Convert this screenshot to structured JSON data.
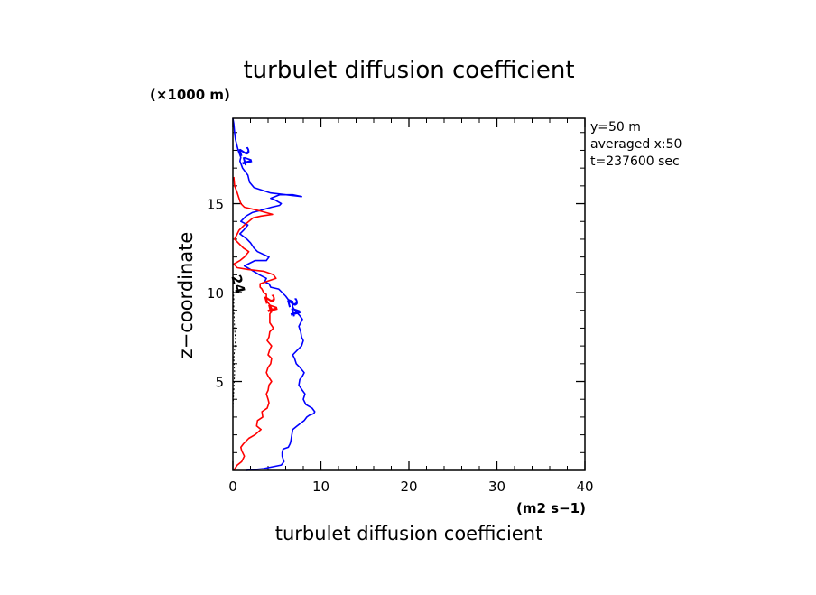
{
  "chart_data": {
    "type": "line",
    "title": "turbulet diffusion coefficient",
    "xlabel": "turbulet diffusion coefficient",
    "ylabel": "z−coordinate",
    "x_unit": "(m2 s−1)",
    "y_unit": "(×1000 m)",
    "xlim": [
      0,
      40
    ],
    "ylim": [
      0,
      19.8
    ],
    "x_ticks": [
      0,
      10,
      20,
      30,
      40
    ],
    "x_tick_labels": [
      "0",
      "10",
      "20",
      "30",
      "40"
    ],
    "y_ticks": [
      5,
      10,
      15
    ],
    "y_tick_labels": [
      "5",
      "10",
      "15"
    ],
    "info_lines": [
      "y=50 m",
      "averaged  x:50",
      "t=237600 sec"
    ],
    "grid": false,
    "series": [
      {
        "color": "#0000ff",
        "label": "24",
        "x": [
          1.5,
          3.5,
          5.5,
          5.8,
          5.6,
          5.6,
          5.7,
          6.3,
          6.5,
          6.6,
          6.7,
          6.8,
          7.3,
          8.1,
          8.4,
          8.7,
          9.2,
          9.3,
          9.0,
          8.3,
          8.0,
          8.2,
          7.9,
          7.5,
          7.6,
          7.9,
          8.1,
          7.6,
          7.2,
          7.0,
          6.8,
          7.4,
          7.8,
          8.0,
          7.8,
          7.7,
          7.5,
          7.9,
          7.6,
          7.0,
          6.8,
          6.8,
          6.3,
          6.0,
          5.6,
          5.2,
          4.3,
          4.1,
          3.6,
          3.8,
          3.0,
          2.0,
          1.3,
          2.5,
          3.8,
          4.1,
          2.8,
          2.4,
          2.0,
          1.6,
          0.8,
          1.2,
          1.7,
          0.9,
          1.5,
          2.2,
          3.0,
          4.4,
          5.3,
          5.5,
          4.8,
          4.3,
          5.3,
          6.8,
          7.8,
          4.3,
          2.4,
          1.9,
          1.7,
          1.1,
          0.8,
          0.9,
          0.6,
          0.3,
          0.2,
          0.1,
          0.0
        ],
        "y": [
          0.0,
          0.1,
          0.3,
          0.5,
          0.8,
          1.0,
          1.2,
          1.3,
          1.5,
          1.7,
          2.0,
          2.3,
          2.5,
          2.8,
          3.0,
          3.1,
          3.2,
          3.3,
          3.5,
          3.7,
          4.0,
          4.3,
          4.5,
          4.8,
          5.1,
          5.3,
          5.5,
          5.8,
          6.0,
          6.3,
          6.5,
          6.8,
          7.0,
          7.3,
          7.5,
          7.8,
          8.1,
          8.5,
          8.7,
          9.0,
          9.2,
          9.5,
          9.6,
          9.8,
          10.0,
          10.2,
          10.3,
          10.5,
          10.6,
          10.8,
          11.0,
          11.3,
          11.5,
          11.8,
          11.8,
          12.0,
          12.3,
          12.5,
          12.8,
          13.0,
          13.3,
          13.5,
          13.8,
          14.0,
          14.3,
          14.5,
          14.6,
          14.8,
          14.9,
          15.0,
          15.2,
          15.3,
          15.5,
          15.5,
          15.4,
          15.6,
          15.9,
          16.2,
          16.6,
          17.0,
          17.4,
          17.6,
          18.0,
          18.6,
          19.0,
          19.5,
          19.8
        ]
      },
      {
        "color": "#ff0000",
        "label": "24",
        "x": [
          0.1,
          0.5,
          1.0,
          1.3,
          1.0,
          0.9,
          1.2,
          1.8,
          2.5,
          3.2,
          2.7,
          2.8,
          3.4,
          3.3,
          3.9,
          4.1,
          4.0,
          3.8,
          4.0,
          4.1,
          4.4,
          4.0,
          3.8,
          4.0,
          4.3,
          4.4,
          4.0,
          4.2,
          4.4,
          3.9,
          4.1,
          4.2,
          4.6,
          4.2,
          4.2,
          4.2,
          4.5,
          4.2,
          3.9,
          3.8,
          3.8,
          3.5,
          3.3,
          3.1,
          3.1,
          4.3,
          4.9,
          4.6,
          3.5,
          1.7,
          0.5,
          0.1,
          0.8,
          1.3,
          1.8,
          1.2,
          0.6,
          0.2,
          0.5,
          0.7,
          1.3,
          1.8,
          2.3,
          3.2,
          4.5,
          3.0,
          1.3,
          0.9,
          0.7,
          0.5,
          0.2,
          0.1
        ],
        "y": [
          0.0,
          0.3,
          0.5,
          0.8,
          1.1,
          1.3,
          1.5,
          1.8,
          2.0,
          2.3,
          2.5,
          2.8,
          3.0,
          3.3,
          3.5,
          3.8,
          4.0,
          4.3,
          4.5,
          4.8,
          5.0,
          5.3,
          5.5,
          5.8,
          6.0,
          6.3,
          6.5,
          6.8,
          7.0,
          7.3,
          7.5,
          7.8,
          8.0,
          8.3,
          8.5,
          8.8,
          9.0,
          9.3,
          9.5,
          9.7,
          9.9,
          10.0,
          10.2,
          10.3,
          10.5,
          10.7,
          10.8,
          11.0,
          11.2,
          11.3,
          11.4,
          11.6,
          11.8,
          12.0,
          12.3,
          12.5,
          12.8,
          13.0,
          13.3,
          13.5,
          13.8,
          14.0,
          14.2,
          14.3,
          14.4,
          14.6,
          14.8,
          15.0,
          15.3,
          15.6,
          16.0,
          16.5
        ]
      },
      {
        "color": "#000000",
        "dashed": true,
        "label": "24",
        "x": [
          0.0,
          0.1,
          0.2,
          0.1,
          0.2,
          0.3,
          0.2,
          0.1,
          0.1,
          0.0
        ],
        "y": [
          3.5,
          4.5,
          5.5,
          6.3,
          6.8,
          7.3,
          8.0,
          9.0,
          9.7,
          10.3
        ]
      }
    ]
  }
}
